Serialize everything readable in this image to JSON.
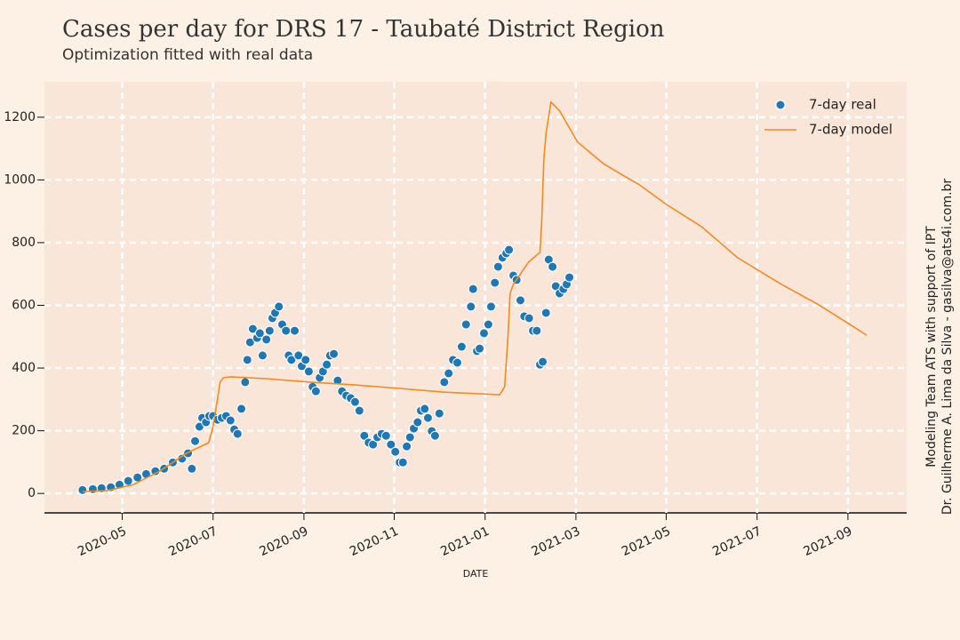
{
  "chart_data": {
    "type": "mixed",
    "title": "Cases per day for DRS 17 - Taubaté District Region",
    "subtitle": "Optimization fitted with real data",
    "xlabel": "DATE",
    "annotations": [
      "Modeling Team ATS with support of IPT",
      "Dr. Guilherme A. Lima da Silva - gasilva@ats4i.com.br"
    ],
    "xlim": [
      2020.19,
      2021.775
    ],
    "xticks": [
      {
        "value": 2020.333,
        "label": "2020-05"
      },
      {
        "value": 2020.5,
        "label": "2020-07"
      },
      {
        "value": 2020.667,
        "label": "2020-09"
      },
      {
        "value": 2020.833,
        "label": "2020-11"
      },
      {
        "value": 2021.0,
        "label": "2021-01"
      },
      {
        "value": 2021.167,
        "label": "2021-03"
      },
      {
        "value": 2021.333,
        "label": "2021-05"
      },
      {
        "value": 2021.5,
        "label": "2021-07"
      },
      {
        "value": 2021.667,
        "label": "2021-09"
      }
    ],
    "ylim": [
      -62,
      1313
    ],
    "yticks": [
      0,
      200,
      400,
      600,
      800,
      1000,
      1200
    ],
    "grid": true,
    "legend": "upper right",
    "series": [
      {
        "name": "7-day real",
        "type": "scatter",
        "color": "#1f77b4",
        "x": [
          2020.26,
          2020.279,
          2020.295,
          2020.312,
          2020.328,
          2020.344,
          2020.361,
          2020.377,
          2020.394,
          2020.41,
          2020.426,
          2020.443,
          2020.454,
          2020.461,
          2020.467,
          2020.475,
          2020.48,
          2020.487,
          2020.493,
          2020.5,
          2020.508,
          2020.516,
          2020.524,
          2020.532,
          2020.539,
          2020.545,
          2020.552,
          2020.559,
          2020.563,
          2020.568,
          2020.573,
          2020.581,
          2020.586,
          2020.591,
          2020.598,
          2020.604,
          2020.609,
          2020.614,
          2020.621,
          2020.627,
          2020.634,
          2020.639,
          2020.644,
          2020.65,
          2020.657,
          2020.663,
          2020.67,
          2020.676,
          2020.683,
          2020.689,
          2020.696,
          2020.702,
          2020.709,
          2020.715,
          2020.722,
          2020.729,
          2020.737,
          2020.745,
          2020.753,
          2020.761,
          2020.769,
          2020.778,
          2020.786,
          2020.794,
          2020.802,
          2020.81,
          2020.818,
          2020.827,
          2020.835,
          2020.843,
          2020.849,
          2020.856,
          2020.862,
          2020.869,
          2020.876,
          2020.882,
          2020.889,
          2020.895,
          2020.902,
          2020.908,
          2020.916,
          2020.925,
          2020.933,
          2020.941,
          2020.949,
          2020.957,
          2020.965,
          2020.974,
          2020.978,
          2020.985,
          2020.99,
          2020.998,
          2021.006,
          2021.011,
          2021.018,
          2021.024,
          2021.032,
          2021.039,
          2021.044,
          2021.052,
          2021.058,
          2021.065,
          2021.072,
          2021.081,
          2021.088,
          2021.095,
          2021.101,
          2021.106,
          2021.112,
          2021.117,
          2021.124,
          2021.13,
          2021.137,
          2021.144,
          2021.15,
          2021.155
        ],
        "values": [
          11,
          14,
          17,
          20,
          28,
          40,
          51,
          62,
          71,
          79,
          99,
          111,
          128,
          79,
          167,
          213,
          241,
          227,
          247,
          247,
          235,
          241,
          247,
          233,
          204,
          190,
          270,
          355,
          426,
          482,
          525,
          496,
          511,
          440,
          491,
          519,
          559,
          576,
          596,
          539,
          519,
          440,
          426,
          519,
          440,
          406,
          426,
          389,
          340,
          326,
          369,
          389,
          411,
          440,
          445,
          360,
          326,
          312,
          304,
          292,
          264,
          184,
          162,
          156,
          179,
          190,
          184,
          156,
          133,
          99,
          99,
          150,
          179,
          207,
          227,
          264,
          270,
          241,
          199,
          184,
          255,
          355,
          383,
          426,
          417,
          468,
          539,
          596,
          652,
          454,
          462,
          511,
          539,
          596,
          672,
          723,
          752,
          766,
          777,
          695,
          681,
          616,
          565,
          559,
          519,
          519,
          411,
          420,
          576,
          746,
          723,
          661,
          638,
          652,
          667,
          689
        ]
      },
      {
        "name": "7-day model",
        "type": "line",
        "color": "#f28a1e",
        "x": [
          2020.26,
          2020.304,
          2020.353,
          2020.402,
          2020.451,
          2020.492,
          2020.5,
          2020.513,
          2020.519,
          2020.532,
          2020.598,
          2020.679,
          2020.761,
          2020.843,
          2020.925,
          2020.99,
          2021.027,
          2021.036,
          2021.042,
          2021.046,
          2021.052,
          2021.08,
          2021.101,
          2021.104,
          2021.108,
          2021.112,
          2021.121,
          2021.137,
          2021.17,
          2021.219,
          2021.284,
          2021.333,
          2021.398,
          2021.464,
          2021.545,
          2021.611,
          2021.676,
          2021.701
        ],
        "values": [
          6,
          9,
          28,
          71,
          128,
          162,
          213,
          355,
          369,
          372,
          366,
          355,
          346,
          335,
          323,
          318,
          315,
          340,
          496,
          638,
          667,
          738,
          769,
          865,
          1064,
          1149,
          1248,
          1220,
          1121,
          1050,
          984,
          922,
          851,
          752,
          667,
          604,
          533,
          505
        ]
      }
    ]
  }
}
